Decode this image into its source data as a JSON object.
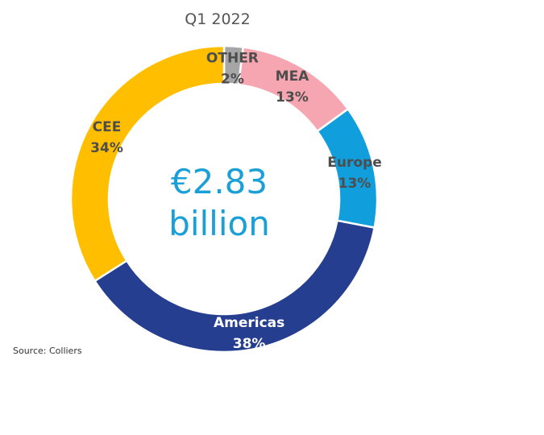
{
  "chart_data": {
    "type": "pie",
    "title": "Q1 2022",
    "center_label": {
      "line1": "€2.83",
      "line2": "billion"
    },
    "slices": [
      {
        "name": "OTHER",
        "value": 2,
        "label": "2%",
        "color": "#a6a6a6",
        "text_color": "#4d4d4d"
      },
      {
        "name": "MEA",
        "value": 13,
        "label": "13%",
        "color": "#f6a6b0",
        "text_color": "#4d4d4d"
      },
      {
        "name": "Europe",
        "value": 13,
        "label": "13%",
        "color": "#109fdc",
        "text_color": "#4d4d4d"
      },
      {
        "name": "Americas",
        "value": 38,
        "label": "38%",
        "color": "#253e8f",
        "text_color": "#ffffff"
      },
      {
        "name": "CEE",
        "value": 34,
        "label": "34%",
        "color": "#ffbf00",
        "text_color": "#4d4d4d"
      }
    ]
  },
  "source": "Source: Colliers"
}
